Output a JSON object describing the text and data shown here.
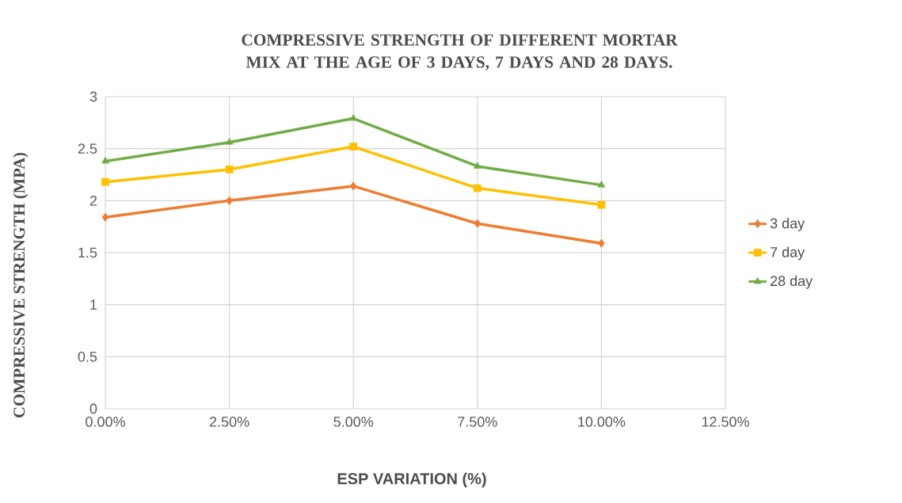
{
  "chart_data": {
    "type": "line",
    "title": "COMPRESSIVE STRENGTH OF DIFFERENT MORTAR MIX AT THE AGE OF 3 DAYS, 7 DAYS AND 28 DAYS.",
    "xlabel": "ESP VARIATION (%)",
    "ylabel": "COMPRESSIVE STRENGTH (MPA)",
    "x": [
      0,
      2.5,
      5,
      7.5,
      10
    ],
    "series": [
      {
        "name": "3 day",
        "color": "#ed7d31",
        "marker": "diamond",
        "values": [
          1.84,
          2.0,
          2.14,
          1.78,
          1.59
        ]
      },
      {
        "name": "7 day",
        "color": "#ffc000",
        "marker": "square",
        "values": [
          2.18,
          2.3,
          2.52,
          2.12,
          1.96
        ]
      },
      {
        "name": "28 day",
        "color": "#70ad47",
        "marker": "triangle",
        "values": [
          2.38,
          2.56,
          2.79,
          2.33,
          2.15
        ]
      }
    ],
    "xlim": [
      0,
      12.5
    ],
    "ylim": [
      0,
      3
    ],
    "xticks": [
      {
        "value": 0,
        "label": "0.00%"
      },
      {
        "value": 2.5,
        "label": "2.50%"
      },
      {
        "value": 5,
        "label": "5.00%"
      },
      {
        "value": 7.5,
        "label": "7.50%"
      },
      {
        "value": 10,
        "label": "10.00%"
      },
      {
        "value": 12.5,
        "label": "12.50%"
      }
    ],
    "yticks": [
      0,
      0.5,
      1,
      1.5,
      2,
      2.5,
      3
    ],
    "grid": true,
    "legend": "right"
  }
}
